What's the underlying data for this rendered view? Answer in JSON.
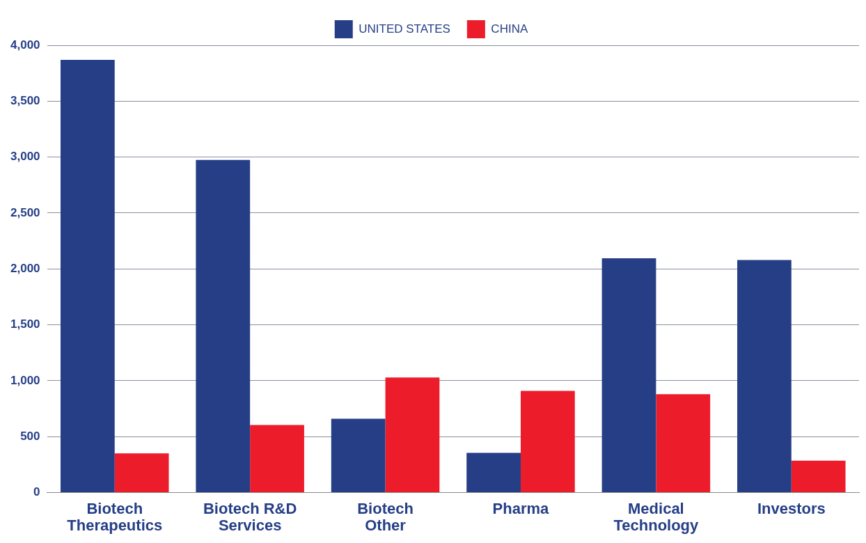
{
  "chart_data": {
    "type": "bar",
    "categories": [
      "Biotech Therapeutics",
      "Biotech R&D Services",
      "Biotech Other",
      "Pharma",
      "Medical Technology",
      "Investors"
    ],
    "series": [
      {
        "name": "UNITED STATES",
        "color": "#253e86",
        "values": [
          3870,
          2975,
          660,
          355,
          2095,
          2080
        ]
      },
      {
        "name": "CHINA",
        "color": "#ed1c2b",
        "values": [
          350,
          605,
          1030,
          910,
          880,
          285
        ]
      }
    ],
    "ylim": [
      0,
      4000
    ],
    "yticks": [
      {
        "value": 0,
        "label": "0"
      },
      {
        "value": 500,
        "label": "500"
      },
      {
        "value": 1000,
        "label": "1,000"
      },
      {
        "value": 1500,
        "label": "1,500"
      },
      {
        "value": 2000,
        "label": "2,000"
      },
      {
        "value": 2500,
        "label": "2,500"
      },
      {
        "value": 3000,
        "label": "3,000"
      },
      {
        "value": 3500,
        "label": "3,500"
      },
      {
        "value": 4000,
        "label": "4,000"
      }
    ],
    "grid": "y",
    "legend": "top"
  }
}
